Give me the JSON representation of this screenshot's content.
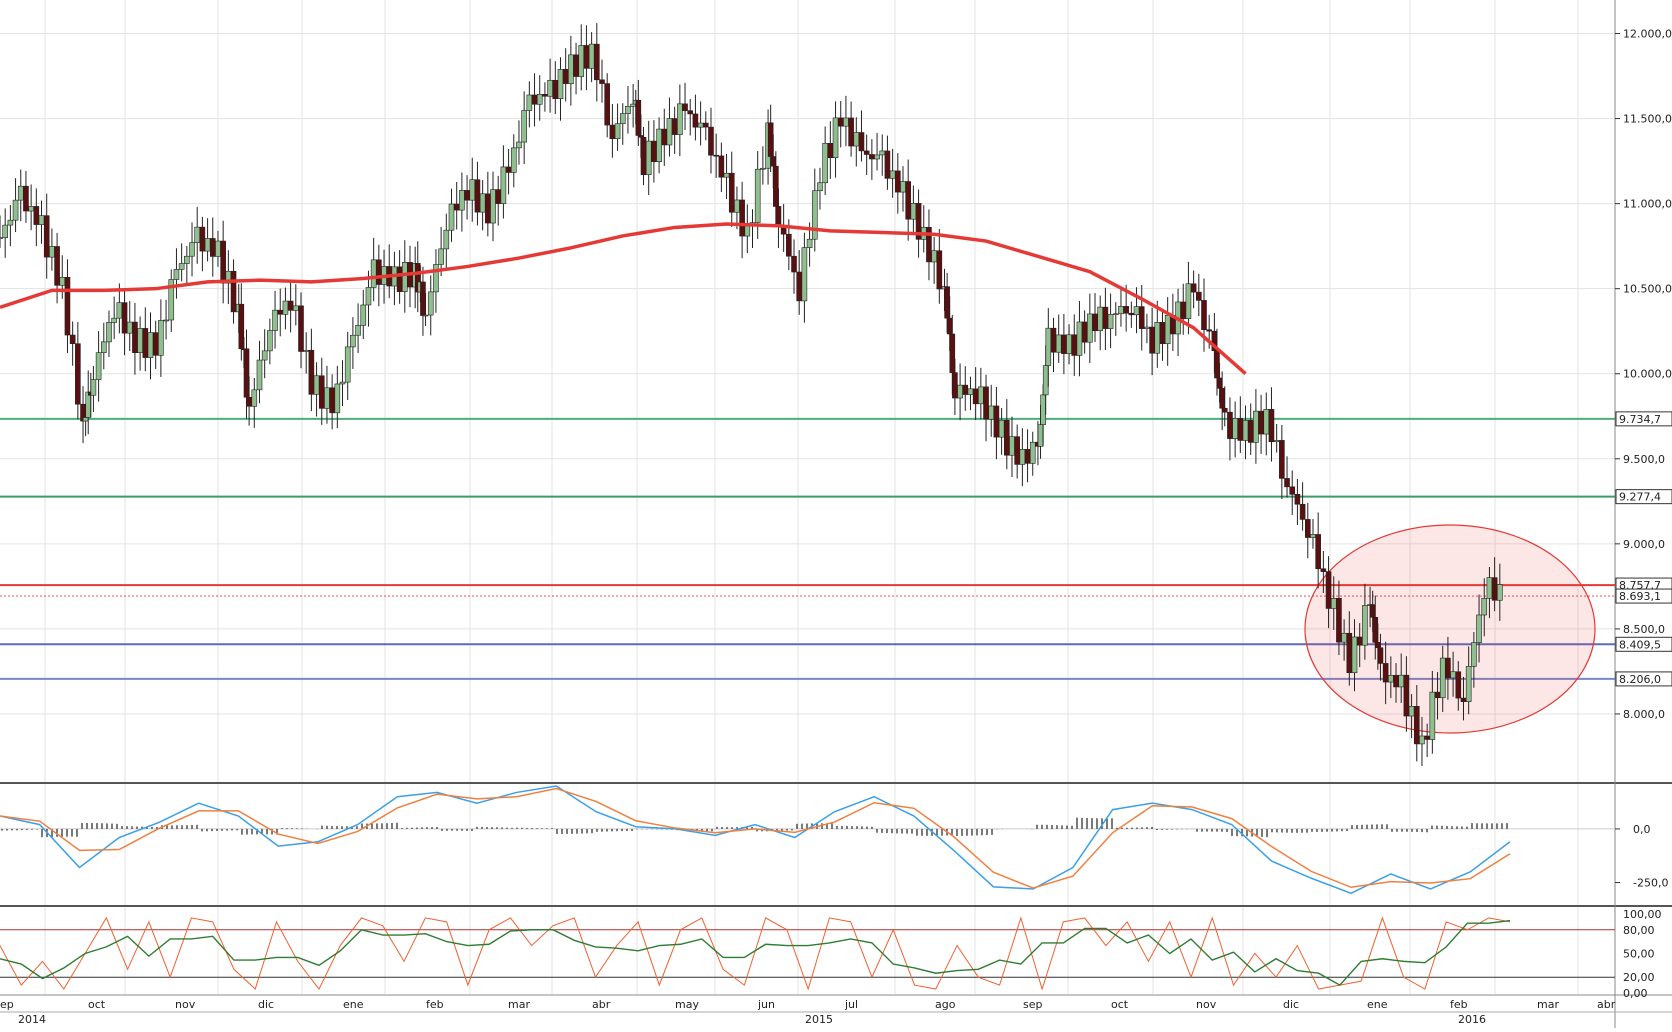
{
  "chart_data": [
    {
      "type": "candlestick",
      "panel": "price",
      "y_ticks": [
        "12.000,0",
        "11.500,0",
        "11.000,0",
        "10.500,0",
        "10.000,0",
        "9.500,0",
        "9.000,0",
        "8.500,0",
        "8.000,0"
      ],
      "y_tick_values": [
        12000,
        11500,
        11000,
        10500,
        10000,
        9500,
        9000,
        8500,
        8000
      ],
      "ylim": [
        7600,
        12150
      ],
      "price_labels": [
        {
          "text": "9.734,7",
          "value": 9734.7,
          "color": "#4caf7a"
        },
        {
          "text": "9.277,4",
          "value": 9277.4,
          "color": "#3e9a66"
        },
        {
          "text": "8.757,7",
          "value": 8757.7,
          "color": "#e53935"
        },
        {
          "text": "8.693,1",
          "value": 8693.1,
          "color": "#e53935"
        },
        {
          "text": "8.409,5",
          "value": 8409.5,
          "color": "#5c6bc0"
        },
        {
          "text": "8.206,0",
          "value": 8206.0,
          "color": "#7986cb"
        }
      ],
      "moving_average_200": {
        "color": "#e53935",
        "points": [
          [
            0,
            10390
          ],
          [
            0.05,
            10490
          ],
          [
            0.1,
            10490
          ],
          [
            0.15,
            10500
          ],
          [
            0.2,
            10540
          ],
          [
            0.25,
            10550
          ],
          [
            0.3,
            10540
          ],
          [
            0.35,
            10560
          ],
          [
            0.4,
            10590
          ],
          [
            0.45,
            10630
          ],
          [
            0.5,
            10680
          ],
          [
            0.55,
            10740
          ],
          [
            0.6,
            10810
          ],
          [
            0.65,
            10860
          ],
          [
            0.7,
            10880
          ],
          [
            0.75,
            10870
          ],
          [
            0.8,
            10840
          ],
          [
            0.85,
            10830
          ],
          [
            0.9,
            10820
          ],
          [
            0.95,
            10780
          ],
          [
            1.0,
            10690
          ],
          [
            1.05,
            10600
          ],
          [
            1.1,
            10440
          ],
          [
            1.15,
            10270
          ],
          [
            1.2,
            10000
          ]
        ]
      },
      "price_series": [
        [
          0,
          10800
        ],
        [
          0.02,
          11050
        ],
        [
          0.04,
          10850
        ],
        [
          0.06,
          10500
        ],
        [
          0.08,
          9700
        ],
        [
          0.09,
          10000
        ],
        [
          0.11,
          10400
        ],
        [
          0.13,
          10200
        ],
        [
          0.15,
          10150
        ],
        [
          0.17,
          10600
        ],
        [
          0.19,
          10800
        ],
        [
          0.21,
          10700
        ],
        [
          0.23,
          10350
        ],
        [
          0.24,
          9800
        ],
        [
          0.26,
          10300
        ],
        [
          0.28,
          10450
        ],
        [
          0.3,
          9950
        ],
        [
          0.32,
          9800
        ],
        [
          0.34,
          10200
        ],
        [
          0.36,
          10600
        ],
        [
          0.38,
          10550
        ],
        [
          0.4,
          10600
        ],
        [
          0.41,
          10350
        ],
        [
          0.43,
          10900
        ],
        [
          0.45,
          11100
        ],
        [
          0.47,
          10950
        ],
        [
          0.49,
          11200
        ],
        [
          0.51,
          11600
        ],
        [
          0.53,
          11650
        ],
        [
          0.55,
          11800
        ],
        [
          0.57,
          11900
        ],
        [
          0.59,
          11400
        ],
        [
          0.61,
          11650
        ],
        [
          0.62,
          11250
        ],
        [
          0.64,
          11400
        ],
        [
          0.66,
          11550
        ],
        [
          0.68,
          11400
        ],
        [
          0.7,
          11100
        ],
        [
          0.72,
          10800
        ],
        [
          0.74,
          11450
        ],
        [
          0.75,
          10900
        ],
        [
          0.77,
          10500
        ],
        [
          0.79,
          11200
        ],
        [
          0.81,
          11500
        ],
        [
          0.83,
          11300
        ],
        [
          0.85,
          11250
        ],
        [
          0.87,
          11050
        ],
        [
          0.89,
          10800
        ],
        [
          0.91,
          10500
        ],
        [
          0.92,
          9900
        ],
        [
          0.94,
          9900
        ],
        [
          0.96,
          9700
        ],
        [
          0.98,
          9500
        ],
        [
          1.0,
          9550
        ],
        [
          1.01,
          10200
        ],
        [
          1.03,
          10150
        ],
        [
          1.05,
          10300
        ],
        [
          1.07,
          10350
        ],
        [
          1.09,
          10400
        ],
        [
          1.11,
          10200
        ],
        [
          1.13,
          10300
        ],
        [
          1.15,
          10500
        ],
        [
          1.17,
          10100
        ],
        [
          1.18,
          9700
        ],
        [
          1.2,
          9650
        ],
        [
          1.22,
          9750
        ],
        [
          1.24,
          9350
        ],
        [
          1.26,
          9100
        ],
        [
          1.28,
          8700
        ],
        [
          1.3,
          8300
        ],
        [
          1.32,
          8650
        ],
        [
          1.33,
          8250
        ],
        [
          1.35,
          8150
        ],
        [
          1.37,
          7800
        ],
        [
          1.39,
          8300
        ],
        [
          1.41,
          8100
        ],
        [
          1.43,
          8750
        ],
        [
          1.45,
          8700
        ]
      ]
    },
    {
      "type": "line",
      "panel": "macd",
      "y_ticks": [
        "0,0",
        "-250,0"
      ],
      "y_tick_values": [
        0,
        -250
      ],
      "ylim": [
        -350,
        200
      ],
      "series_colors": {
        "macd": "#3aa0e8",
        "signal": "#f08040",
        "histogram": "#222222"
      },
      "macd_series": [
        [
          0,
          60
        ],
        [
          0.05,
          20
        ],
        [
          0.1,
          -180
        ],
        [
          0.15,
          -40
        ],
        [
          0.2,
          30
        ],
        [
          0.25,
          120
        ],
        [
          0.3,
          60
        ],
        [
          0.35,
          -80
        ],
        [
          0.4,
          -60
        ],
        [
          0.45,
          20
        ],
        [
          0.5,
          150
        ],
        [
          0.55,
          170
        ],
        [
          0.6,
          120
        ],
        [
          0.65,
          170
        ],
        [
          0.7,
          200
        ],
        [
          0.75,
          80
        ],
        [
          0.8,
          10
        ],
        [
          0.85,
          0
        ],
        [
          0.9,
          -30
        ],
        [
          0.95,
          20
        ],
        [
          1.0,
          -40
        ],
        [
          1.05,
          80
        ],
        [
          1.1,
          150
        ],
        [
          1.15,
          60
        ],
        [
          1.2,
          -100
        ],
        [
          1.25,
          -270
        ],
        [
          1.3,
          -280
        ],
        [
          1.35,
          -180
        ],
        [
          1.4,
          90
        ],
        [
          1.45,
          120
        ],
        [
          1.5,
          90
        ],
        [
          1.55,
          20
        ],
        [
          1.6,
          -150
        ],
        [
          1.65,
          -230
        ],
        [
          1.7,
          -300
        ],
        [
          1.75,
          -210
        ],
        [
          1.8,
          -280
        ],
        [
          1.85,
          -200
        ],
        [
          1.9,
          -60
        ]
      ]
    },
    {
      "type": "line",
      "panel": "stochastic",
      "y_ticks": [
        "100,00",
        "80,00",
        "50,00",
        "20,00",
        "0,00"
      ],
      "y_tick_values": [
        100,
        80,
        50,
        20,
        0
      ],
      "ylim": [
        0,
        105
      ],
      "levels": [
        80,
        20
      ],
      "series_colors": {
        "k": "#f06030",
        "d": "#2e7d32"
      },
      "k_series": [
        [
          0,
          60
        ],
        [
          0.02,
          10
        ],
        [
          0.04,
          40
        ],
        [
          0.06,
          5
        ],
        [
          0.08,
          50
        ],
        [
          0.1,
          95
        ],
        [
          0.12,
          30
        ],
        [
          0.14,
          90
        ],
        [
          0.16,
          20
        ],
        [
          0.18,
          95
        ],
        [
          0.2,
          90
        ],
        [
          0.22,
          30
        ],
        [
          0.24,
          5
        ],
        [
          0.26,
          90
        ],
        [
          0.28,
          40
        ],
        [
          0.3,
          5
        ],
        [
          0.32,
          60
        ],
        [
          0.34,
          95
        ],
        [
          0.36,
          85
        ],
        [
          0.38,
          40
        ],
        [
          0.4,
          95
        ],
        [
          0.42,
          90
        ],
        [
          0.44,
          10
        ],
        [
          0.46,
          80
        ],
        [
          0.48,
          95
        ],
        [
          0.5,
          60
        ],
        [
          0.52,
          85
        ],
        [
          0.54,
          95
        ],
        [
          0.56,
          20
        ],
        [
          0.58,
          60
        ],
        [
          0.6,
          90
        ],
        [
          0.62,
          10
        ],
        [
          0.64,
          80
        ],
        [
          0.66,
          95
        ],
        [
          0.68,
          30
        ],
        [
          0.7,
          10
        ],
        [
          0.72,
          95
        ],
        [
          0.74,
          80
        ],
        [
          0.76,
          5
        ],
        [
          0.78,
          95
        ],
        [
          0.8,
          90
        ],
        [
          0.82,
          20
        ],
        [
          0.84,
          80
        ],
        [
          0.86,
          10
        ],
        [
          0.88,
          5
        ],
        [
          0.9,
          60
        ],
        [
          0.92,
          20
        ],
        [
          0.94,
          10
        ],
        [
          0.96,
          95
        ],
        [
          0.98,
          5
        ],
        [
          1.0,
          90
        ],
        [
          1.02,
          95
        ],
        [
          1.04,
          60
        ],
        [
          1.06,
          90
        ],
        [
          1.08,
          40
        ],
        [
          1.1,
          90
        ],
        [
          1.12,
          20
        ],
        [
          1.14,
          95
        ],
        [
          1.16,
          10
        ],
        [
          1.18,
          50
        ],
        [
          1.2,
          20
        ],
        [
          1.22,
          60
        ],
        [
          1.24,
          5
        ],
        [
          1.26,
          10
        ],
        [
          1.28,
          15
        ],
        [
          1.3,
          95
        ],
        [
          1.32,
          20
        ],
        [
          1.34,
          5
        ],
        [
          1.36,
          90
        ],
        [
          1.38,
          80
        ],
        [
          1.4,
          95
        ],
        [
          1.42,
          90
        ]
      ]
    }
  ],
  "time_axis": {
    "months": [
      "ep",
      "oct",
      "nov",
      "dic",
      "ene",
      "feb",
      "mar",
      "abr",
      "may",
      "jun",
      "jul",
      "ago",
      "sep",
      "oct",
      "nov",
      "dic",
      "ene",
      "feb",
      "mar",
      "abr"
    ],
    "years": [
      "2014",
      "2015",
      "2016"
    ]
  }
}
